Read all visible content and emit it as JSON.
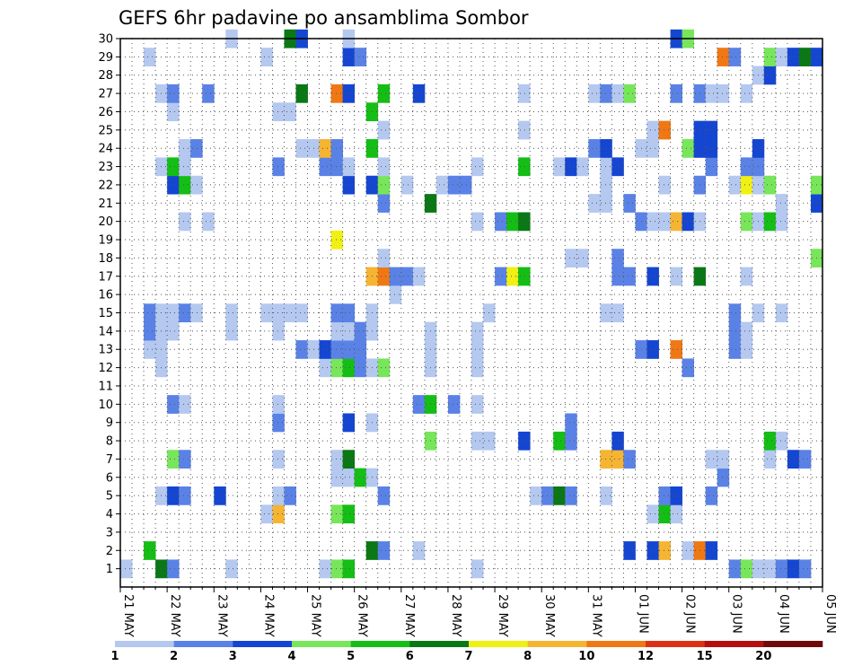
{
  "chart_data": {
    "type": "heatmap",
    "title": "GEFS 6hr padavine po ansamblima Sombor",
    "xlabel": "",
    "ylabel": "",
    "x_tick_labels": [
      "21 MAY",
      "22 MAY",
      "23 MAY",
      "24 MAY",
      "25 MAY",
      "26 MAY",
      "27 MAY",
      "28 MAY",
      "29 MAY",
      "30 MAY",
      "31 MAY",
      "01 JUN",
      "02 JUN",
      "03 JUN",
      "04 JUN",
      "05 JUN"
    ],
    "y_tick_labels": [
      "1",
      "2",
      "3",
      "4",
      "5",
      "6",
      "7",
      "8",
      "9",
      "10",
      "11",
      "12",
      "13",
      "14",
      "15",
      "16",
      "17",
      "18",
      "19",
      "20",
      "21",
      "22",
      "23",
      "24",
      "25",
      "26",
      "27",
      "28",
      "29",
      "30"
    ],
    "ylim": [
      0,
      30
    ],
    "x_steps": 60,
    "grid": true,
    "legend_placement": "bottom",
    "colorbar": {
      "boundaries": [
        "1",
        "2",
        "3",
        "4",
        "5",
        "6",
        "7",
        "8",
        "10",
        "12",
        "15",
        "20"
      ],
      "colors": [
        "#b4c8f0",
        "#5a82e6",
        "#1446d2",
        "#78e65a",
        "#14be14",
        "#0a7814",
        "#f0f014",
        "#f5b432",
        "#f07814",
        "#dc3214",
        "#b40f0f",
        "#6e0a0a"
      ]
    },
    "cells": [
      [
        1,
        1,
        1
      ],
      [
        4,
        1,
        6
      ],
      [
        5,
        1,
        2
      ],
      [
        10,
        1,
        1
      ],
      [
        18,
        1,
        1
      ],
      [
        19,
        1,
        4
      ],
      [
        20,
        1,
        5
      ],
      [
        31,
        1,
        1
      ],
      [
        53,
        1,
        2
      ],
      [
        54,
        1,
        4
      ],
      [
        55,
        1,
        1
      ],
      [
        56,
        1,
        1
      ],
      [
        57,
        1,
        2
      ],
      [
        58,
        1,
        3
      ],
      [
        59,
        1,
        2
      ],
      [
        3,
        2,
        5
      ],
      [
        22,
        2,
        6
      ],
      [
        23,
        2,
        2
      ],
      [
        26,
        2,
        1
      ],
      [
        44,
        2,
        3
      ],
      [
        46,
        2,
        3
      ],
      [
        47,
        2,
        8
      ],
      [
        49,
        2,
        1
      ],
      [
        50,
        2,
        9
      ],
      [
        51,
        2,
        3
      ],
      [
        13,
        4,
        1
      ],
      [
        14,
        4,
        8
      ],
      [
        19,
        4,
        4
      ],
      [
        20,
        4,
        5
      ],
      [
        46,
        4,
        1
      ],
      [
        47,
        4,
        5
      ],
      [
        48,
        4,
        1
      ],
      [
        4,
        5,
        1
      ],
      [
        5,
        5,
        3
      ],
      [
        6,
        5,
        2
      ],
      [
        9,
        5,
        3
      ],
      [
        14,
        5,
        1
      ],
      [
        15,
        5,
        2
      ],
      [
        23,
        5,
        2
      ],
      [
        36,
        5,
        1
      ],
      [
        37,
        5,
        2
      ],
      [
        38,
        5,
        6
      ],
      [
        39,
        5,
        2
      ],
      [
        42,
        5,
        1
      ],
      [
        47,
        5,
        2
      ],
      [
        48,
        5,
        3
      ],
      [
        51,
        5,
        2
      ],
      [
        19,
        6,
        1
      ],
      [
        20,
        6,
        1
      ],
      [
        21,
        6,
        5
      ],
      [
        22,
        6,
        1
      ],
      [
        52,
        6,
        2
      ],
      [
        5,
        7,
        4
      ],
      [
        6,
        7,
        2
      ],
      [
        14,
        7,
        1
      ],
      [
        19,
        7,
        1
      ],
      [
        20,
        7,
        6
      ],
      [
        42,
        7,
        8
      ],
      [
        43,
        7,
        8
      ],
      [
        44,
        7,
        2
      ],
      [
        51,
        7,
        1
      ],
      [
        52,
        7,
        1
      ],
      [
        56,
        7,
        1
      ],
      [
        58,
        7,
        3
      ],
      [
        59,
        7,
        2
      ],
      [
        27,
        8,
        4
      ],
      [
        31,
        8,
        1
      ],
      [
        32,
        8,
        1
      ],
      [
        35,
        8,
        3
      ],
      [
        38,
        8,
        5
      ],
      [
        39,
        8,
        2
      ],
      [
        43,
        8,
        3
      ],
      [
        56,
        8,
        5
      ],
      [
        57,
        8,
        1
      ],
      [
        14,
        9,
        2
      ],
      [
        20,
        9,
        3
      ],
      [
        22,
        9,
        1
      ],
      [
        39,
        9,
        2
      ],
      [
        5,
        10,
        2
      ],
      [
        6,
        10,
        1
      ],
      [
        14,
        10,
        1
      ],
      [
        26,
        10,
        2
      ],
      [
        27,
        10,
        5
      ],
      [
        29,
        10,
        2
      ],
      [
        31,
        10,
        1
      ],
      [
        4,
        12,
        1
      ],
      [
        18,
        12,
        1
      ],
      [
        19,
        12,
        4
      ],
      [
        20,
        12,
        5
      ],
      [
        21,
        12,
        2
      ],
      [
        22,
        12,
        1
      ],
      [
        23,
        12,
        4
      ],
      [
        27,
        12,
        1
      ],
      [
        31,
        12,
        1
      ],
      [
        49,
        12,
        2
      ],
      [
        3,
        13,
        1
      ],
      [
        4,
        13,
        1
      ],
      [
        16,
        13,
        2
      ],
      [
        17,
        13,
        1
      ],
      [
        18,
        13,
        3
      ],
      [
        19,
        13,
        2
      ],
      [
        20,
        13,
        2
      ],
      [
        21,
        13,
        2
      ],
      [
        27,
        13,
        1
      ],
      [
        31,
        13,
        1
      ],
      [
        45,
        13,
        2
      ],
      [
        46,
        13,
        3
      ],
      [
        48,
        13,
        9
      ],
      [
        53,
        13,
        2
      ],
      [
        54,
        13,
        1
      ],
      [
        3,
        14,
        2
      ],
      [
        4,
        14,
        1
      ],
      [
        5,
        14,
        1
      ],
      [
        10,
        14,
        1
      ],
      [
        14,
        14,
        1
      ],
      [
        19,
        14,
        1
      ],
      [
        20,
        14,
        1
      ],
      [
        21,
        14,
        2
      ],
      [
        22,
        14,
        1
      ],
      [
        27,
        14,
        1
      ],
      [
        31,
        14,
        1
      ],
      [
        53,
        14,
        2
      ],
      [
        54,
        14,
        1
      ],
      [
        3,
        15,
        2
      ],
      [
        4,
        15,
        1
      ],
      [
        5,
        15,
        1
      ],
      [
        6,
        15,
        2
      ],
      [
        7,
        15,
        1
      ],
      [
        10,
        15,
        1
      ],
      [
        13,
        15,
        1
      ],
      [
        14,
        15,
        1
      ],
      [
        15,
        15,
        1
      ],
      [
        16,
        15,
        1
      ],
      [
        19,
        15,
        2
      ],
      [
        20,
        15,
        2
      ],
      [
        22,
        15,
        1
      ],
      [
        32,
        15,
        1
      ],
      [
        42,
        15,
        1
      ],
      [
        43,
        15,
        1
      ],
      [
        53,
        15,
        2
      ],
      [
        55,
        15,
        1
      ],
      [
        57,
        15,
        1
      ],
      [
        24,
        16,
        1
      ],
      [
        22,
        17,
        8
      ],
      [
        23,
        17,
        9
      ],
      [
        24,
        17,
        2
      ],
      [
        25,
        17,
        2
      ],
      [
        26,
        17,
        1
      ],
      [
        33,
        17,
        2
      ],
      [
        34,
        17,
        7
      ],
      [
        35,
        17,
        5
      ],
      [
        43,
        17,
        2
      ],
      [
        44,
        17,
        2
      ],
      [
        46,
        17,
        3
      ],
      [
        48,
        17,
        1
      ],
      [
        50,
        17,
        6
      ],
      [
        54,
        17,
        1
      ],
      [
        23,
        18,
        1
      ],
      [
        39,
        18,
        1
      ],
      [
        40,
        18,
        1
      ],
      [
        43,
        18,
        2
      ],
      [
        60,
        18,
        4
      ],
      [
        19,
        19,
        7
      ],
      [
        6,
        20,
        1
      ],
      [
        8,
        20,
        1
      ],
      [
        31,
        20,
        1
      ],
      [
        33,
        20,
        2
      ],
      [
        34,
        20,
        5
      ],
      [
        35,
        20,
        6
      ],
      [
        45,
        20,
        2
      ],
      [
        46,
        20,
        1
      ],
      [
        47,
        20,
        1
      ],
      [
        48,
        20,
        8
      ],
      [
        49,
        20,
        3
      ],
      [
        50,
        20,
        1
      ],
      [
        54,
        20,
        4
      ],
      [
        55,
        20,
        1
      ],
      [
        56,
        20,
        5
      ],
      [
        57,
        20,
        1
      ],
      [
        23,
        21,
        2
      ],
      [
        27,
        21,
        6
      ],
      [
        41,
        21,
        1
      ],
      [
        42,
        21,
        1
      ],
      [
        44,
        21,
        2
      ],
      [
        57,
        21,
        1
      ],
      [
        60,
        21,
        3
      ],
      [
        5,
        22,
        3
      ],
      [
        6,
        22,
        5
      ],
      [
        7,
        22,
        1
      ],
      [
        20,
        22,
        3
      ],
      [
        22,
        22,
        3
      ],
      [
        23,
        22,
        4
      ],
      [
        25,
        22,
        1
      ],
      [
        28,
        22,
        1
      ],
      [
        29,
        22,
        2
      ],
      [
        30,
        22,
        2
      ],
      [
        42,
        22,
        1
      ],
      [
        47,
        22,
        1
      ],
      [
        50,
        22,
        2
      ],
      [
        53,
        22,
        1
      ],
      [
        54,
        22,
        7
      ],
      [
        55,
        22,
        1
      ],
      [
        56,
        22,
        4
      ],
      [
        60,
        22,
        4
      ],
      [
        4,
        23,
        1
      ],
      [
        5,
        23,
        5
      ],
      [
        6,
        23,
        1
      ],
      [
        14,
        23,
        2
      ],
      [
        18,
        23,
        2
      ],
      [
        19,
        23,
        2
      ],
      [
        20,
        23,
        1
      ],
      [
        23,
        23,
        1
      ],
      [
        31,
        23,
        1
      ],
      [
        35,
        23,
        5
      ],
      [
        38,
        23,
        1
      ],
      [
        39,
        23,
        3
      ],
      [
        40,
        23,
        1
      ],
      [
        42,
        23,
        1
      ],
      [
        43,
        23,
        3
      ],
      [
        51,
        23,
        2
      ],
      [
        54,
        23,
        2
      ],
      [
        55,
        23,
        2
      ],
      [
        6,
        24,
        1
      ],
      [
        7,
        24,
        2
      ],
      [
        16,
        24,
        1
      ],
      [
        17,
        24,
        1
      ],
      [
        18,
        24,
        8
      ],
      [
        19,
        24,
        2
      ],
      [
        22,
        24,
        5
      ],
      [
        41,
        24,
        2
      ],
      [
        42,
        24,
        3
      ],
      [
        45,
        24,
        1
      ],
      [
        46,
        24,
        1
      ],
      [
        49,
        24,
        4
      ],
      [
        50,
        24,
        3
      ],
      [
        51,
        24,
        3
      ],
      [
        55,
        24,
        3
      ],
      [
        23,
        25,
        1
      ],
      [
        35,
        25,
        1
      ],
      [
        46,
        25,
        1
      ],
      [
        47,
        25,
        9
      ],
      [
        50,
        25,
        3
      ],
      [
        51,
        25,
        3
      ],
      [
        5,
        26,
        1
      ],
      [
        14,
        26,
        1
      ],
      [
        15,
        26,
        1
      ],
      [
        22,
        26,
        5
      ],
      [
        4,
        27,
        1
      ],
      [
        5,
        27,
        2
      ],
      [
        8,
        27,
        2
      ],
      [
        16,
        27,
        6
      ],
      [
        19,
        27,
        9
      ],
      [
        20,
        27,
        3
      ],
      [
        23,
        27,
        5
      ],
      [
        26,
        27,
        3
      ],
      [
        35,
        27,
        1
      ],
      [
        41,
        27,
        1
      ],
      [
        42,
        27,
        2
      ],
      [
        43,
        27,
        1
      ],
      [
        44,
        27,
        4
      ],
      [
        48,
        27,
        2
      ],
      [
        50,
        27,
        2
      ],
      [
        51,
        27,
        1
      ],
      [
        52,
        27,
        1
      ],
      [
        54,
        27,
        1
      ],
      [
        55,
        28,
        1
      ],
      [
        56,
        28,
        3
      ],
      [
        3,
        29,
        1
      ],
      [
        13,
        29,
        1
      ],
      [
        20,
        29,
        3
      ],
      [
        21,
        29,
        2
      ],
      [
        52,
        29,
        9
      ],
      [
        53,
        29,
        2
      ],
      [
        56,
        29,
        4
      ],
      [
        57,
        29,
        1
      ],
      [
        58,
        29,
        3
      ],
      [
        59,
        29,
        6
      ],
      [
        60,
        29,
        3
      ],
      [
        10,
        30,
        1
      ],
      [
        15,
        30,
        6
      ],
      [
        16,
        30,
        3
      ],
      [
        20,
        30,
        1
      ],
      [
        48,
        30,
        3
      ],
      [
        49,
        30,
        4
      ]
    ]
  }
}
